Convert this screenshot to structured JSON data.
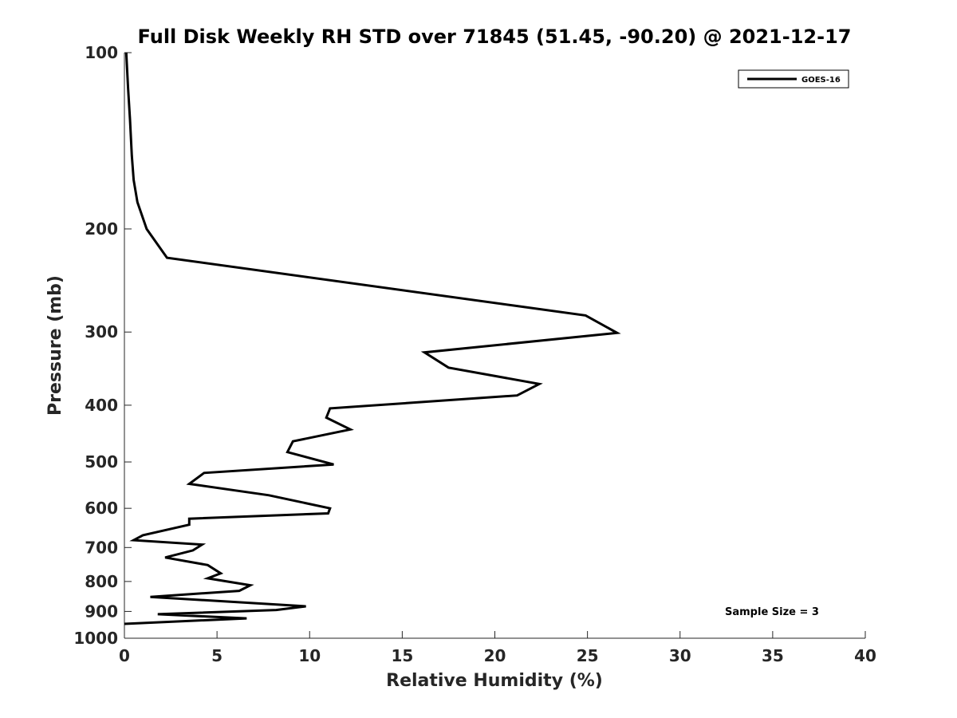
{
  "chart_data": {
    "type": "line",
    "title": "Full Disk Weekly RH STD over 71845 (51.45, -90.20) @ 2021-12-17",
    "xlabel": "Relative Humidity (%)",
    "ylabel": "Pressure (mb)",
    "xlim": [
      0,
      40
    ],
    "ylim": [
      100,
      1000
    ],
    "y_scale": "log",
    "y_reversed": true,
    "x_ticks": [
      "0",
      "5",
      "10",
      "15",
      "20",
      "25",
      "30",
      "35",
      "40"
    ],
    "y_ticks": [
      "100",
      "200",
      "300",
      "400",
      "500",
      "600",
      "700",
      "800",
      "900",
      "1000"
    ],
    "grid": false,
    "legend_position": "top-right",
    "annotation": "Sample Size = 3",
    "series": [
      {
        "name": "GOES-16",
        "color": "#000000",
        "x": [
          0.1,
          0.2,
          0.3,
          0.4,
          0.5,
          0.7,
          1.2,
          2.3,
          24.9,
          26.6,
          16.2,
          17.5,
          22.4,
          21.2,
          11.1,
          10.9,
          12.2,
          9.1,
          8.8,
          11.3,
          4.3,
          3.5,
          7.8,
          11.1,
          11.0,
          3.5,
          3.5,
          1.0,
          0.5,
          4.2,
          3.7,
          2.2,
          4.5,
          5.2,
          4.5,
          6.8,
          6.2,
          1.4,
          9.8,
          8.2,
          1.8,
          6.6,
          0.0
        ],
        "y": [
          100,
          115,
          130,
          150,
          165,
          180,
          200,
          224,
          281,
          301,
          325,
          345,
          368,
          385,
          405,
          420,
          440,
          461,
          481,
          505,
          522,
          545,
          570,
          600,
          612,
          625,
          640,
          667,
          680,
          692,
          708,
          728,
          750,
          775,
          790,
          812,
          830,
          850,
          882,
          895,
          910,
          925,
          945
        ]
      }
    ]
  }
}
